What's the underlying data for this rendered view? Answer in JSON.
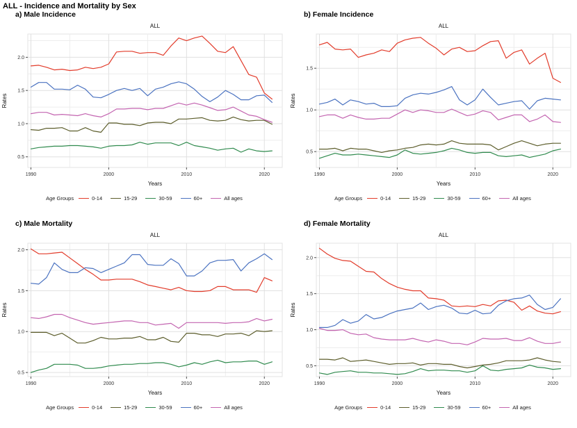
{
  "header": {
    "title": "ALL - Incidence and Mortality by Sex"
  },
  "legend": {
    "title": "Age Groups",
    "items": [
      {
        "label": "0-14",
        "color": "#e23b2a"
      },
      {
        "label": "15-29",
        "color": "#5c5d2b"
      },
      {
        "label": "30-59",
        "color": "#2f8a4d"
      },
      {
        "label": "60+",
        "color": "#4a72c0"
      },
      {
        "label": "All ages",
        "color": "#c364b0"
      }
    ]
  },
  "years": [
    1990,
    1991,
    1992,
    1993,
    1994,
    1995,
    1996,
    1997,
    1998,
    1999,
    2000,
    2001,
    2002,
    2003,
    2004,
    2005,
    2006,
    2007,
    2008,
    2009,
    2010,
    2011,
    2012,
    2013,
    2014,
    2015,
    2016,
    2017,
    2018,
    2019,
    2020,
    2021
  ],
  "chart_data": [
    {
      "type": "line",
      "label": "a) Male Incidence",
      "title": "ALL",
      "xlabel": "Years",
      "ylabel": "Rates",
      "xlim": [
        1989.6,
        2022.3
      ],
      "ylim": [
        0.34,
        2.35
      ],
      "xticks": [
        1990,
        2000,
        2010,
        2020
      ],
      "xminor": [
        1995,
        2005,
        2015
      ],
      "yticks": [
        0.5,
        1.0,
        1.5,
        2.0
      ],
      "yminor": [
        0.75,
        1.25,
        1.75,
        2.25
      ],
      "series": [
        {
          "name": "0-14",
          "values": [
            1.87,
            1.88,
            1.85,
            1.81,
            1.82,
            1.8,
            1.81,
            1.85,
            1.83,
            1.85,
            1.9,
            2.08,
            2.09,
            2.09,
            2.06,
            2.07,
            2.07,
            2.03,
            2.17,
            2.29,
            2.25,
            2.29,
            2.32,
            2.21,
            2.09,
            2.07,
            2.16,
            1.95,
            1.74,
            1.7,
            1.46,
            1.37
          ]
        },
        {
          "name": "15-29",
          "values": [
            0.91,
            0.9,
            0.93,
            0.93,
            0.94,
            0.89,
            0.89,
            0.94,
            0.89,
            0.87,
            1.01,
            1.01,
            0.99,
            0.99,
            0.97,
            1.01,
            1.02,
            1.02,
            1.0,
            1.07,
            1.07,
            1.08,
            1.09,
            1.05,
            1.04,
            1.05,
            1.1,
            1.06,
            1.04,
            1.05,
            1.05,
            0.99
          ]
        },
        {
          "name": "30-59",
          "values": [
            0.62,
            0.64,
            0.65,
            0.66,
            0.66,
            0.67,
            0.67,
            0.66,
            0.65,
            0.63,
            0.66,
            0.67,
            0.67,
            0.68,
            0.72,
            0.69,
            0.71,
            0.71,
            0.71,
            0.67,
            0.72,
            0.67,
            0.65,
            0.63,
            0.6,
            0.62,
            0.63,
            0.57,
            0.62,
            0.59,
            0.58,
            0.59
          ]
        },
        {
          "name": "60+",
          "values": [
            1.55,
            1.62,
            1.62,
            1.52,
            1.52,
            1.51,
            1.58,
            1.52,
            1.4,
            1.39,
            1.44,
            1.5,
            1.53,
            1.5,
            1.53,
            1.42,
            1.52,
            1.55,
            1.6,
            1.63,
            1.6,
            1.52,
            1.41,
            1.33,
            1.4,
            1.5,
            1.44,
            1.36,
            1.36,
            1.42,
            1.43,
            1.32
          ]
        },
        {
          "name": "All ages",
          "values": [
            1.15,
            1.17,
            1.17,
            1.13,
            1.14,
            1.13,
            1.12,
            1.15,
            1.12,
            1.1,
            1.15,
            1.22,
            1.22,
            1.23,
            1.23,
            1.21,
            1.23,
            1.23,
            1.27,
            1.31,
            1.28,
            1.31,
            1.28,
            1.24,
            1.2,
            1.21,
            1.25,
            1.19,
            1.13,
            1.11,
            1.06,
            1.02
          ]
        }
      ]
    },
    {
      "type": "line",
      "label": "b) Female Incidence",
      "title": "ALL",
      "xlabel": "Years",
      "ylabel": "Rates",
      "xlim": [
        1989.6,
        2022.3
      ],
      "ylim": [
        0.31,
        1.91
      ],
      "xticks": [
        1990,
        2000,
        2010,
        2020
      ],
      "xminor": [
        1995,
        2005,
        2015
      ],
      "yticks": [
        0.5,
        1.0,
        1.5
      ],
      "yminor": [
        0.75,
        1.25,
        1.75
      ],
      "series": [
        {
          "name": "0-14",
          "values": [
            1.78,
            1.81,
            1.73,
            1.72,
            1.73,
            1.63,
            1.66,
            1.68,
            1.72,
            1.7,
            1.8,
            1.84,
            1.86,
            1.87,
            1.8,
            1.74,
            1.66,
            1.73,
            1.75,
            1.7,
            1.71,
            1.77,
            1.82,
            1.83,
            1.62,
            1.69,
            1.72,
            1.55,
            1.62,
            1.68,
            1.38,
            1.33
          ]
        },
        {
          "name": "15-29",
          "values": [
            0.53,
            0.53,
            0.54,
            0.51,
            0.54,
            0.53,
            0.53,
            0.51,
            0.49,
            0.51,
            0.52,
            0.54,
            0.55,
            0.58,
            0.59,
            0.58,
            0.59,
            0.63,
            0.6,
            0.59,
            0.59,
            0.59,
            0.58,
            0.52,
            0.56,
            0.6,
            0.63,
            0.6,
            0.57,
            0.59,
            0.6,
            0.6
          ]
        },
        {
          "name": "30-59",
          "values": [
            0.42,
            0.45,
            0.48,
            0.46,
            0.46,
            0.47,
            0.46,
            0.45,
            0.44,
            0.43,
            0.46,
            0.52,
            0.48,
            0.47,
            0.48,
            0.49,
            0.51,
            0.54,
            0.52,
            0.49,
            0.48,
            0.49,
            0.49,
            0.45,
            0.44,
            0.45,
            0.46,
            0.43,
            0.45,
            0.47,
            0.51,
            0.53
          ]
        },
        {
          "name": "60+",
          "values": [
            1.07,
            1.09,
            1.13,
            1.06,
            1.12,
            1.1,
            1.07,
            1.08,
            1.04,
            1.04,
            1.05,
            1.14,
            1.18,
            1.2,
            1.19,
            1.21,
            1.24,
            1.28,
            1.12,
            1.06,
            1.12,
            1.25,
            1.15,
            1.06,
            1.08,
            1.1,
            1.11,
            1.01,
            1.11,
            1.14,
            1.13,
            1.12
          ]
        },
        {
          "name": "All ages",
          "values": [
            0.92,
            0.94,
            0.94,
            0.9,
            0.94,
            0.91,
            0.89,
            0.89,
            0.9,
            0.9,
            0.95,
            1.0,
            0.97,
            1.0,
            0.99,
            0.97,
            0.97,
            1.01,
            0.97,
            0.93,
            0.95,
            0.99,
            0.97,
            0.88,
            0.91,
            0.94,
            0.94,
            0.86,
            0.89,
            0.94,
            0.86,
            0.85
          ]
        }
      ]
    },
    {
      "type": "line",
      "label": "c) Male Mortality",
      "title": "ALL",
      "xlabel": "Years",
      "ylabel": "Rates",
      "xlim": [
        1989.6,
        2022.3
      ],
      "ylim": [
        0.45,
        2.08
      ],
      "xticks": [
        1990,
        2000,
        2010,
        2020
      ],
      "xminor": [
        1995,
        2005,
        2015
      ],
      "yticks": [
        0.5,
        1.0,
        1.5,
        2.0
      ],
      "yminor": [
        0.75,
        1.25,
        1.75
      ],
      "series": [
        {
          "name": "0-14",
          "values": [
            2.01,
            1.95,
            1.95,
            1.96,
            1.97,
            1.9,
            1.83,
            1.76,
            1.7,
            1.63,
            1.63,
            1.64,
            1.64,
            1.64,
            1.61,
            1.57,
            1.55,
            1.53,
            1.51,
            1.54,
            1.5,
            1.49,
            1.49,
            1.5,
            1.55,
            1.55,
            1.51,
            1.51,
            1.51,
            1.48,
            1.66,
            1.62
          ]
        },
        {
          "name": "15-29",
          "values": [
            0.99,
            0.99,
            0.99,
            0.95,
            0.98,
            0.92,
            0.86,
            0.86,
            0.89,
            0.93,
            0.91,
            0.91,
            0.92,
            0.92,
            0.94,
            0.9,
            0.9,
            0.93,
            0.88,
            0.87,
            0.98,
            0.98,
            0.96,
            0.96,
            0.94,
            0.97,
            0.97,
            0.98,
            0.95,
            1.01,
            1.0,
            1.01
          ]
        },
        {
          "name": "30-59",
          "values": [
            0.5,
            0.53,
            0.55,
            0.6,
            0.6,
            0.6,
            0.59,
            0.55,
            0.55,
            0.56,
            0.58,
            0.59,
            0.6,
            0.6,
            0.61,
            0.61,
            0.62,
            0.62,
            0.6,
            0.57,
            0.59,
            0.62,
            0.6,
            0.63,
            0.65,
            0.62,
            0.63,
            0.63,
            0.64,
            0.64,
            0.6,
            0.63
          ]
        },
        {
          "name": "60+",
          "values": [
            1.59,
            1.58,
            1.66,
            1.84,
            1.76,
            1.72,
            1.72,
            1.78,
            1.77,
            1.72,
            1.76,
            1.8,
            1.84,
            1.94,
            1.94,
            1.82,
            1.81,
            1.81,
            1.89,
            1.83,
            1.68,
            1.68,
            1.74,
            1.84,
            1.87,
            1.87,
            1.88,
            1.74,
            1.84,
            1.89,
            1.95,
            1.88
          ]
        },
        {
          "name": "All ages",
          "values": [
            1.17,
            1.16,
            1.18,
            1.21,
            1.21,
            1.17,
            1.14,
            1.11,
            1.09,
            1.1,
            1.11,
            1.12,
            1.13,
            1.13,
            1.11,
            1.11,
            1.08,
            1.09,
            1.1,
            1.04,
            1.11,
            1.11,
            1.11,
            1.11,
            1.11,
            1.1,
            1.11,
            1.11,
            1.12,
            1.16,
            1.13,
            1.15
          ]
        }
      ]
    },
    {
      "type": "line",
      "label": "d) Female Mortality",
      "title": "ALL",
      "xlabel": "Years",
      "ylabel": "Rates",
      "xlim": [
        1989.6,
        2022.3
      ],
      "ylim": [
        0.35,
        2.2
      ],
      "xticks": [
        1990,
        2000,
        2010,
        2020
      ],
      "xminor": [
        1995,
        2005,
        2015
      ],
      "yticks": [
        0.5,
        1.0,
        1.5,
        2.0
      ],
      "yminor": [
        0.75,
        1.25,
        1.75
      ],
      "series": [
        {
          "name": "0-14",
          "values": [
            2.13,
            2.05,
            1.99,
            1.96,
            1.95,
            1.88,
            1.81,
            1.8,
            1.71,
            1.64,
            1.59,
            1.56,
            1.54,
            1.54,
            1.44,
            1.43,
            1.41,
            1.33,
            1.32,
            1.33,
            1.32,
            1.35,
            1.33,
            1.4,
            1.41,
            1.38,
            1.27,
            1.33,
            1.26,
            1.23,
            1.22,
            1.25
          ]
        },
        {
          "name": "15-29",
          "values": [
            0.59,
            0.59,
            0.58,
            0.61,
            0.56,
            0.57,
            0.58,
            0.56,
            0.54,
            0.52,
            0.53,
            0.53,
            0.54,
            0.51,
            0.53,
            0.53,
            0.52,
            0.52,
            0.49,
            0.47,
            0.49,
            0.51,
            0.52,
            0.54,
            0.57,
            0.57,
            0.57,
            0.58,
            0.61,
            0.58,
            0.56,
            0.55
          ]
        },
        {
          "name": "30-59",
          "values": [
            0.4,
            0.38,
            0.41,
            0.42,
            0.43,
            0.41,
            0.41,
            0.4,
            0.4,
            0.39,
            0.38,
            0.39,
            0.42,
            0.46,
            0.43,
            0.44,
            0.44,
            0.43,
            0.43,
            0.41,
            0.43,
            0.5,
            0.44,
            0.43,
            0.45,
            0.46,
            0.47,
            0.51,
            0.48,
            0.47,
            0.45,
            0.46
          ]
        },
        {
          "name": "60+",
          "values": [
            1.03,
            1.03,
            1.06,
            1.14,
            1.09,
            1.12,
            1.21,
            1.15,
            1.17,
            1.22,
            1.26,
            1.28,
            1.3,
            1.37,
            1.28,
            1.32,
            1.34,
            1.3,
            1.23,
            1.22,
            1.27,
            1.22,
            1.23,
            1.34,
            1.4,
            1.43,
            1.44,
            1.48,
            1.35,
            1.28,
            1.31,
            1.43
          ]
        },
        {
          "name": "All ages",
          "values": [
            1.02,
            0.99,
            0.99,
            1.0,
            0.95,
            0.93,
            0.94,
            0.89,
            0.87,
            0.86,
            0.86,
            0.86,
            0.88,
            0.85,
            0.83,
            0.86,
            0.84,
            0.81,
            0.81,
            0.79,
            0.83,
            0.88,
            0.87,
            0.87,
            0.88,
            0.85,
            0.85,
            0.89,
            0.84,
            0.81,
            0.81,
            0.83
          ]
        }
      ]
    }
  ],
  "style": {
    "grid_major_color": "#e0e0e0",
    "grid_minor_color": "#ededed",
    "panel_border_color": "#e3e3e3",
    "tick_color": "#4d4d4d",
    "background": "#ffffff"
  }
}
